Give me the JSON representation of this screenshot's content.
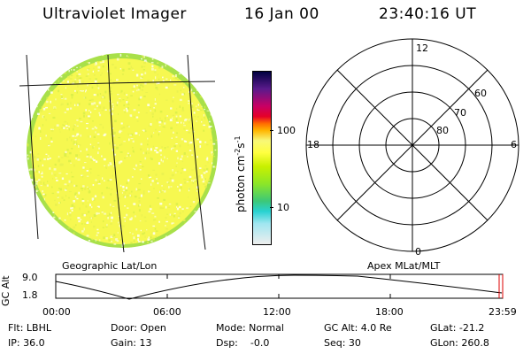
{
  "header": {
    "title": "Ultraviolet Imager",
    "date": "16 Jan 00",
    "time": "23:40:16 UT"
  },
  "colorbar": {
    "unit": "photon cm",
    "unit_exp1": "-2",
    "unit_mid": "s",
    "unit_exp2": "-1",
    "tick_100": "100",
    "tick_10": "10",
    "colors": [
      "#000040",
      "#5a1a8c",
      "#c80064",
      "#e60028",
      "#ff6a00",
      "#ffb400",
      "#f8f878",
      "#ffff40",
      "#c8f000",
      "#8ce628",
      "#3cc878",
      "#28d2d2",
      "#a0e6f0",
      "#eeeeee"
    ]
  },
  "left_plot": {
    "label": "Geographic Lat/Lon",
    "disk_color": "#f6f850",
    "rim_color": "#a8e04a"
  },
  "polar_plot": {
    "label": "Apex MLat/MLT",
    "mlt_labels": {
      "top": "12",
      "left": "18",
      "right": "6",
      "bottom": "0"
    },
    "lat_labels": [
      "60",
      "70",
      "80"
    ]
  },
  "timeline": {
    "ylabel": "GC Alt",
    "ymax": "9.0",
    "ymin": "1.8",
    "ticks": [
      "00:00",
      "06:00",
      "12:00",
      "18:00",
      "23:59"
    ],
    "marker_color": "#dd0000"
  },
  "info": {
    "flt": "Flt: LBHL",
    "ip": "IP: 36.0",
    "door": "Door: Open",
    "gain": "Gain: 13",
    "mode": "Mode: Normal",
    "dsp": "Dsp:    -0.0",
    "gcalt": "GC Alt: 4.0 Re",
    "seq": "Seq: 30",
    "glat": "GLat: -21.2",
    "glon": "GLon: 260.8"
  }
}
